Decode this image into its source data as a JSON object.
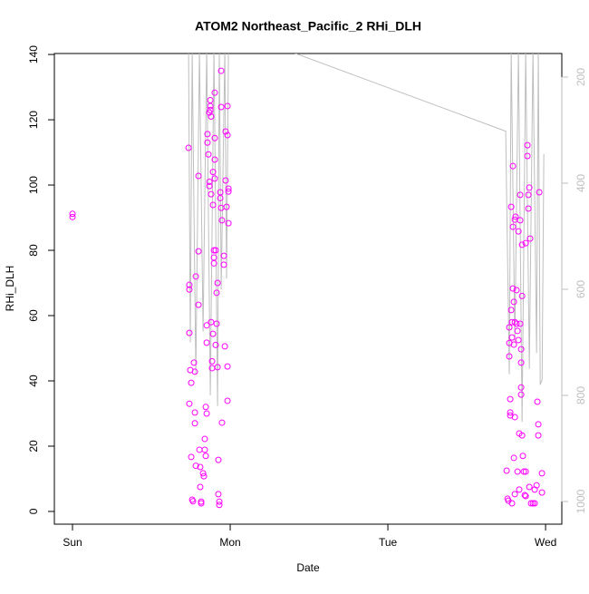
{
  "chart_data": {
    "type": "scatter",
    "title": "ATOM2 Northeast_Pacific_2 RHi_DLH",
    "xlabel": "Date",
    "ylabel": "RHi_DLH",
    "xlim": [
      -0.115,
      3.103
    ],
    "xticks": [
      {
        "value": 0,
        "label": "Sun"
      },
      {
        "value": 1,
        "label": "Mon"
      },
      {
        "value": 2,
        "label": "Tue"
      },
      {
        "value": 3,
        "label": "Wed"
      }
    ],
    "ylim": [
      -3.9,
      140.3
    ],
    "yticks": [
      0,
      20,
      40,
      60,
      80,
      100,
      120,
      140
    ],
    "y2lim": [
      1042.7,
      155.6
    ],
    "y2ticks": [
      200,
      400,
      600,
      800,
      1000
    ],
    "y2color": "#bebebe",
    "series": [
      {
        "color": "#ff00ff",
        "x": [
          0,
          0,
          0.736,
          0.741,
          0.741,
          0.741,
          0.747,
          0.753,
          0.741,
          0.753,
          0.759,
          0.764,
          0.77,
          0.776,
          0.776,
          0.776,
          0.782,
          0.782,
          0.799,
          0.799,
          0.799,
          0.805,
          0.81,
          0.81,
          0.816,
          0.816,
          0.828,
          0.833,
          0.839,
          0.839,
          0.845,
          0.851,
          0.845,
          0.851,
          0.851,
          0.856,
          0.856,
          0.862,
          0.868,
          0.868,
          0.868,
          0.874,
          0.874,
          0.874,
          0.879,
          0.879,
          0.879,
          0.885,
          0.885,
          0.891,
          0.891,
          0.891,
          0.897,
          0.897,
          0.897,
          0.902,
          0.902,
          0.902,
          0.902,
          0.908,
          0.908,
          0.914,
          0.914,
          0.92,
          0.92,
          0.925,
          0.925,
          0.931,
          0.931,
          0.937,
          0.937,
          0.943,
          0.943,
          0.943,
          0.948,
          0.948,
          0.96,
          0.96,
          0.966,
          0.971,
          0.971,
          0.977,
          0.983,
          0.983,
          0.989,
          0.989,
          0.989,
          0.983,
          0.983,
          2.753,
          2.759,
          2.764,
          2.77,
          2.77,
          2.77,
          2.776,
          2.776,
          2.776,
          2.782,
          2.782,
          2.787,
          2.787,
          2.787,
          2.793,
          2.793,
          2.793,
          2.799,
          2.799,
          2.799,
          2.805,
          2.805,
          2.805,
          2.805,
          2.81,
          2.816,
          2.816,
          2.822,
          2.822,
          2.828,
          2.828,
          2.833,
          2.833,
          2.839,
          2.839,
          2.839,
          2.845,
          2.845,
          2.845,
          2.845,
          2.851,
          2.851,
          2.851,
          2.856,
          2.862,
          2.868,
          2.874,
          2.874,
          2.885,
          2.885,
          2.891,
          2.891,
          2.897,
          2.902,
          2.908,
          2.92,
          2.931,
          2.943,
          2.948,
          2.954,
          2.954,
          2.96,
          2.977,
          2.977,
          2.931,
          2.897,
          2.874
        ],
        "values": [
          91.2,
          90.2,
          111.4,
          69.4,
          68,
          54.7,
          43.3,
          39.4,
          33,
          16.7,
          3.6,
          3.1,
          45.6,
          42.8,
          30.3,
          27,
          72,
          14,
          79.7,
          102.8,
          63.3,
          18.9,
          13.6,
          7.5,
          3,
          2.5,
          11.7,
          10.8,
          22.2,
          18.9,
          32,
          30,
          17,
          57,
          51.7,
          115.6,
          113,
          109.4,
          101,
          99.7,
          122.2,
          126,
          124.2,
          123,
          121,
          97.2,
          58,
          46,
          43.9,
          104,
          93.9,
          54.4,
          80,
          77.8,
          76,
          114.4,
          128.3,
          107.8,
          102,
          80,
          51,
          67,
          57.5,
          70,
          44.2,
          15.8,
          5.3,
          2,
          3,
          97.8,
          96,
          123.9,
          93,
          135,
          27.2,
          89.2,
          78.3,
          75.6,
          50.6,
          101.4,
          116.4,
          93.3,
          124.2,
          115.3,
          98.9,
          98,
          88.3,
          44.4,
          33.9,
          12.5,
          3.9,
          3.3,
          56.4,
          51.6,
          47.5,
          30.3,
          29.4,
          34.4,
          61.7,
          93.3,
          58,
          53.3,
          2.5,
          105.8,
          68.3,
          87.2,
          64.2,
          51.1,
          16.4,
          89.4,
          58,
          28.9,
          5.3,
          90.3,
          67.8,
          57.5,
          55.3,
          12.2,
          85.8,
          52.5,
          23.9,
          6.7,
          97,
          89.2,
          57.5,
          49.7,
          45.6,
          38,
          35.8,
          81.7,
          66,
          23.3,
          17,
          12.2,
          5,
          82.2,
          12.2,
          112.2,
          108.9,
          97,
          92.8,
          99.2,
          83.6,
          2.5,
          2.5,
          6.7,
          8,
          33.6,
          26.7,
          23.3,
          97.8,
          11.7,
          5.8,
          2.5,
          7.5,
          4.7
        ]
      },
      {
        "color": "#bebebe",
        "type": "line",
        "axis": "y2",
        "x": [
          0.736,
          0.747,
          0.759,
          0.782,
          0.805,
          0.828,
          0.851,
          0.874,
          0.897,
          0.92,
          0.931,
          0.943,
          0.966,
          0.977,
          0.989,
          1.0,
          2.747,
          2.77,
          2.782,
          2.805,
          2.828,
          2.851,
          2.874,
          2.897,
          2.92,
          2.943,
          2.954,
          2.966,
          2.978,
          2.989
        ],
        "values": [
          150,
          700,
          150,
          760,
          150,
          680,
          150,
          800,
          150,
          820,
          150,
          600,
          150,
          580,
          150,
          110,
          302,
          760,
          150,
          700,
          150,
          850,
          150,
          750,
          150,
          720,
          150,
          780,
          770,
          345
        ]
      }
    ]
  }
}
